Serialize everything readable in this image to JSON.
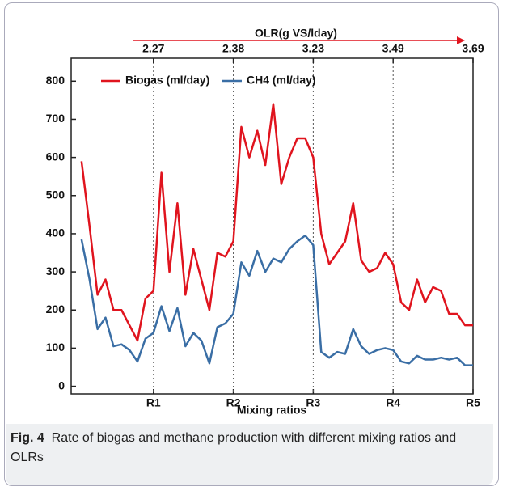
{
  "chart_data": {
    "type": "line",
    "x_label": "Mixing ratios",
    "x2_label": "OLR(g VS/lday)",
    "xlim": [
      -0.03,
      5.0
    ],
    "xticks": [
      {
        "value": 1,
        "label": "R1"
      },
      {
        "value": 2,
        "label": "R2"
      },
      {
        "value": 3,
        "label": "R3"
      },
      {
        "value": 4,
        "label": "R4"
      },
      {
        "value": 5,
        "label": "R5"
      }
    ],
    "x2ticks": [
      {
        "value": 1,
        "label": "2.27"
      },
      {
        "value": 2,
        "label": "2.38"
      },
      {
        "value": 3,
        "label": "3.23"
      },
      {
        "value": 4,
        "label": "3.49"
      },
      {
        "value": 5,
        "label": "3.69"
      }
    ],
    "ylim": [
      -20,
      860
    ],
    "yticks": [
      0,
      100,
      200,
      300,
      400,
      500,
      600,
      700,
      800
    ],
    "x": [
      0.1,
      0.2,
      0.3,
      0.4,
      0.5,
      0.6,
      0.7,
      0.8,
      0.9,
      1.0,
      1.1,
      1.2,
      1.3,
      1.4,
      1.5,
      1.6,
      1.7,
      1.8,
      1.9,
      2.0,
      2.1,
      2.2,
      2.3,
      2.4,
      2.5,
      2.6,
      2.7,
      2.8,
      2.9,
      3.0,
      3.1,
      3.2,
      3.3,
      3.4,
      3.5,
      3.6,
      3.7,
      3.8,
      3.9,
      4.0,
      4.1,
      4.2,
      4.3,
      4.4,
      4.5,
      4.6,
      4.7,
      4.8,
      4.9,
      5.0
    ],
    "series": [
      {
        "name": "Biogas (ml/day)",
        "color": "#e0141e",
        "values": [
          590,
          420,
          240,
          280,
          200,
          200,
          160,
          120,
          230,
          250,
          560,
          300,
          480,
          240,
          360,
          280,
          200,
          350,
          340,
          380,
          680,
          600,
          670,
          580,
          740,
          530,
          600,
          650,
          650,
          600,
          400,
          320,
          350,
          380,
          480,
          330,
          300,
          310,
          350,
          320,
          220,
          200,
          280,
          220,
          260,
          250,
          190,
          190,
          160,
          160
        ]
      },
      {
        "name": "CH4 (ml/day)",
        "color": "#3a6ea5",
        "values": [
          385,
          280,
          150,
          180,
          105,
          110,
          95,
          65,
          125,
          140,
          210,
          145,
          205,
          105,
          140,
          120,
          60,
          155,
          165,
          190,
          325,
          290,
          355,
          300,
          335,
          325,
          360,
          380,
          395,
          370,
          90,
          75,
          90,
          85,
          150,
          105,
          85,
          95,
          100,
          95,
          65,
          60,
          80,
          70,
          70,
          75,
          70,
          75,
          55,
          55
        ]
      }
    ],
    "x_dotted_grid": true
  },
  "caption": {
    "label": "Fig. 4",
    "text": "Rate of biogas and methane production with different mixing ratios and OLRs"
  }
}
